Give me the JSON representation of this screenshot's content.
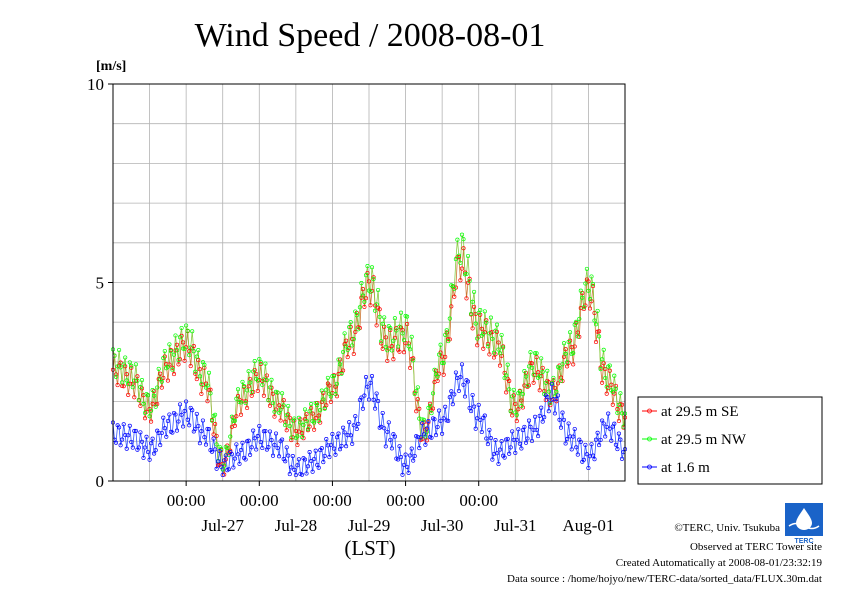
{
  "chart_data": {
    "type": "line",
    "title": "Wind Speed / 2008-08-01",
    "ylabel": "[m/s]",
    "xlabel": "(LST)",
    "ylim": [
      0,
      10
    ],
    "y_ticks": [
      "0",
      "5",
      "10"
    ],
    "x_time_ticks": [
      "00:00",
      "00:00",
      "00:00",
      "00:00",
      "00:00"
    ],
    "x_date_labels": [
      "Jul-27",
      "Jul-28",
      "Jul-29",
      "Jul-30",
      "Jul-31",
      "Aug-01"
    ],
    "xlim": [
      "2008-07-26 00:00",
      "2008-08-02 00:00"
    ],
    "grid": true,
    "legend_position": "right",
    "series": [
      {
        "name": "at 29.5 m SE",
        "color": "#ff0000",
        "x": [
          "07-26 00:00",
          "07-26 06:00",
          "07-26 12:00",
          "07-26 18:00",
          "07-27 00:00",
          "07-27 06:00",
          "07-27 12:00",
          "07-27 18:00",
          "07-28 00:00",
          "07-28 06:00",
          "07-28 12:00",
          "07-28 18:00",
          "07-29 00:00",
          "07-29 06:00",
          "07-29 12:00",
          "07-29 18:00",
          "07-30 00:00",
          "07-30 06:00",
          "07-30 12:00",
          "07-30 18:00",
          "07-31 00:00",
          "07-31 06:00",
          "07-31 12:00",
          "07-31 18:00",
          "08-01 00:00",
          "08-01 06:00",
          "08-01 12:00",
          "08-01 18:00",
          "08-02 00:00"
        ],
        "values": [
          2.8,
          2.5,
          1.8,
          2.9,
          3.4,
          2.5,
          0.4,
          2.0,
          2.6,
          1.9,
          1.2,
          1.6,
          2.3,
          3.5,
          4.9,
          3.4,
          3.6,
          1.2,
          3.0,
          5.5,
          3.8,
          3.4,
          1.8,
          2.8,
          2.2,
          3.2,
          4.8,
          2.5,
          1.6
        ]
      },
      {
        "name": "at 29.5 m NW",
        "color": "#00ff00",
        "x": [
          "07-26 00:00",
          "07-26 06:00",
          "07-26 12:00",
          "07-26 18:00",
          "07-27 00:00",
          "07-27 06:00",
          "07-27 12:00",
          "07-27 18:00",
          "07-28 00:00",
          "07-28 06:00",
          "07-28 12:00",
          "07-28 18:00",
          "07-29 00:00",
          "07-29 06:00",
          "07-29 12:00",
          "07-29 18:00",
          "07-30 00:00",
          "07-30 06:00",
          "07-30 12:00",
          "07-30 18:00",
          "07-31 00:00",
          "07-31 06:00",
          "07-31 12:00",
          "07-31 18:00",
          "08-01 00:00",
          "08-01 06:00",
          "08-01 12:00",
          "08-01 18:00",
          "08-02 00:00"
        ],
        "values": [
          3.0,
          2.7,
          1.9,
          3.1,
          3.6,
          2.7,
          0.5,
          2.2,
          2.8,
          2.0,
          1.3,
          1.7,
          2.4,
          3.7,
          5.1,
          3.6,
          3.9,
          1.3,
          3.2,
          5.9,
          4.0,
          3.6,
          1.9,
          3.0,
          2.3,
          3.4,
          5.0,
          2.7,
          1.7
        ]
      },
      {
        "name": "at 1.6 m",
        "color": "#0000ff",
        "x": [
          "07-26 00:00",
          "07-26 06:00",
          "07-26 12:00",
          "07-26 18:00",
          "07-27 00:00",
          "07-27 06:00",
          "07-27 12:00",
          "07-27 18:00",
          "07-28 00:00",
          "07-28 06:00",
          "07-28 12:00",
          "07-28 18:00",
          "07-29 00:00",
          "07-29 06:00",
          "07-29 12:00",
          "07-29 18:00",
          "07-30 00:00",
          "07-30 06:00",
          "07-30 12:00",
          "07-30 18:00",
          "07-31 00:00",
          "07-31 06:00",
          "07-31 12:00",
          "07-31 18:00",
          "08-01 00:00",
          "08-01 06:00",
          "08-01 12:00",
          "08-01 18:00",
          "08-02 00:00"
        ],
        "values": [
          1.2,
          1.1,
          0.8,
          1.4,
          1.7,
          1.2,
          0.4,
          0.7,
          1.1,
          0.9,
          0.3,
          0.5,
          0.9,
          1.2,
          2.4,
          1.2,
          0.4,
          1.2,
          1.5,
          2.6,
          1.6,
          0.7,
          1.0,
          1.3,
          2.1,
          1.1,
          0.6,
          1.4,
          0.8
        ]
      }
    ]
  },
  "footer": {
    "credit": "©TERC, Univ. Tsukuba",
    "observed": "Observed at TERC Tower site",
    "created": "Created Automatically at 2008-08-01/23:32:19",
    "source": "Data source : /home/hojyo/new/TERC-data/sorted_data/FLUX.30m.dat",
    "logo_text": "TERC"
  }
}
